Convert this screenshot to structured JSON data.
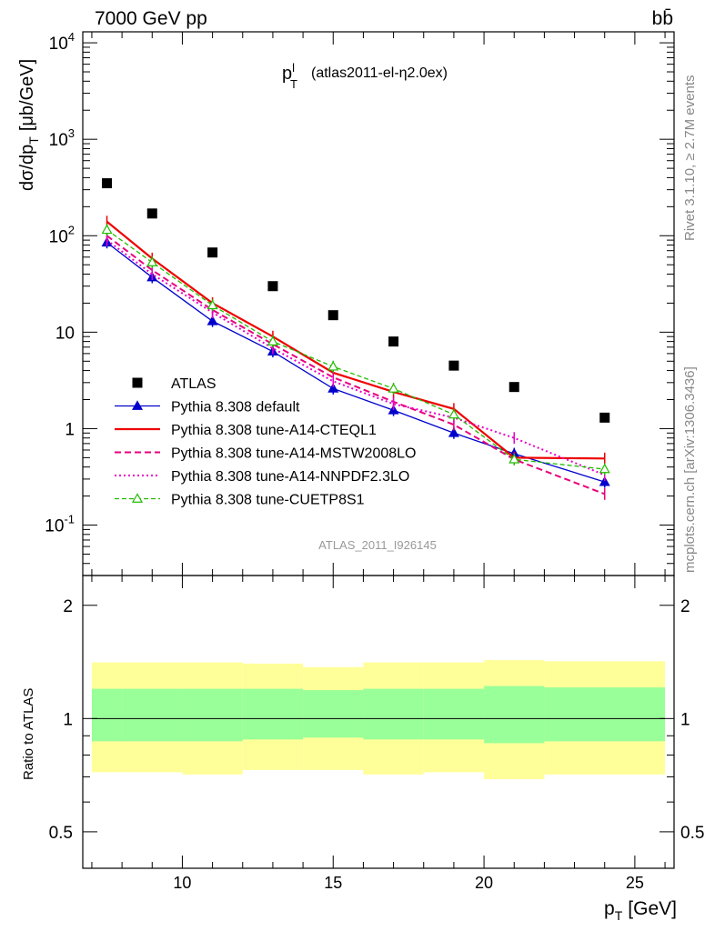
{
  "header": {
    "left": "7000 GeV pp",
    "right": "bb̄",
    "right_side": "Rivet 3.1.10, ≥ 2.7M events",
    "right_side_lower": "mcplots.cern.ch [arXiv:1306.3436]"
  },
  "chart_data": {
    "type": "line",
    "title_main": "p",
    "title_sup": "l",
    "title_sub": "T",
    "title_rest": "(atlas2011-el-η2.0ex)",
    "watermark": "ATLAS_2011_I926145",
    "ylabel": "dσ/dp",
    "ylabel_sub": "T",
    "ylabel_unit": "[μb/GeV]",
    "xlabel": "p",
    "xlabel_sub": "T",
    "xlabel_unit": "[GeV]",
    "ratio_ylabel": "Ratio to ATLAS",
    "xlim": [
      6.7,
      26.3
    ],
    "ylim": [
      0.03,
      13000
    ],
    "yscale": "log",
    "ratio_ylim": [
      0.4,
      2.4
    ],
    "ratio_yscale": "log",
    "x_ticks": [
      "10",
      "15",
      "20",
      "25"
    ],
    "y_ticks": [
      "10^{-1}",
      "1",
      "10",
      "10^{2}",
      "10^{3}",
      "10^{4}"
    ],
    "ratio_ticks": [
      "0.5",
      "1",
      "2"
    ],
    "x": [
      7.5,
      9,
      11,
      13,
      15,
      17,
      19,
      21,
      24
    ],
    "x_edges": [
      7,
      8,
      10,
      12,
      14,
      16,
      18,
      20,
      22,
      26
    ],
    "band_inner": [
      [
        0.87,
        1.2
      ],
      [
        0.87,
        1.2
      ],
      [
        0.87,
        1.2
      ],
      [
        0.88,
        1.2
      ],
      [
        0.89,
        1.19
      ],
      [
        0.88,
        1.2
      ],
      [
        0.88,
        1.2
      ],
      [
        0.86,
        1.22
      ],
      [
        0.87,
        1.21
      ]
    ],
    "band_outer": [
      [
        0.72,
        1.41
      ],
      [
        0.72,
        1.41
      ],
      [
        0.71,
        1.41
      ],
      [
        0.73,
        1.4
      ],
      [
        0.73,
        1.37
      ],
      [
        0.71,
        1.41
      ],
      [
        0.72,
        1.41
      ],
      [
        0.69,
        1.43
      ],
      [
        0.71,
        1.42
      ]
    ],
    "series": [
      {
        "name": "ATLAS",
        "style": "data",
        "color": "#000000",
        "values": [
          350,
          170,
          67,
          30,
          15,
          8,
          4.5,
          2.7,
          1.3
        ]
      },
      {
        "name": "Pythia 8.308 default",
        "style": "tri-filled",
        "color": "#0000cc",
        "values": [
          85,
          37,
          13,
          6.3,
          2.6,
          1.55,
          0.9,
          0.55,
          0.28
        ]
      },
      {
        "name": "Pythia 8.308 tune-A14-CTEQL1",
        "style": "solid",
        "color": "#ee0000",
        "values": [
          140,
          58,
          20,
          9,
          3.8,
          2.4,
          1.6,
          0.5,
          0.49
        ]
      },
      {
        "name": "Pythia 8.308 tune-A14-MSTW2008LO",
        "style": "dashed",
        "color": "#e8007a",
        "values": [
          100,
          44,
          17,
          7.5,
          3.4,
          1.9,
          1.1,
          0.48,
          0.21
        ]
      },
      {
        "name": "Pythia 8.308 tune-A14-NNPDF2.3LO",
        "style": "dotted",
        "color": "#e800c8",
        "values": [
          90,
          40,
          16,
          6.8,
          3.1,
          1.8,
          1.3,
          0.8,
          0.33
        ]
      },
      {
        "name": "Pythia 8.308 tune-CUETP8S1",
        "style": "tri-open",
        "color": "#22bb00",
        "values": [
          115,
          53,
          19,
          8,
          4.4,
          2.6,
          1.4,
          0.48,
          0.38
        ]
      }
    ]
  }
}
